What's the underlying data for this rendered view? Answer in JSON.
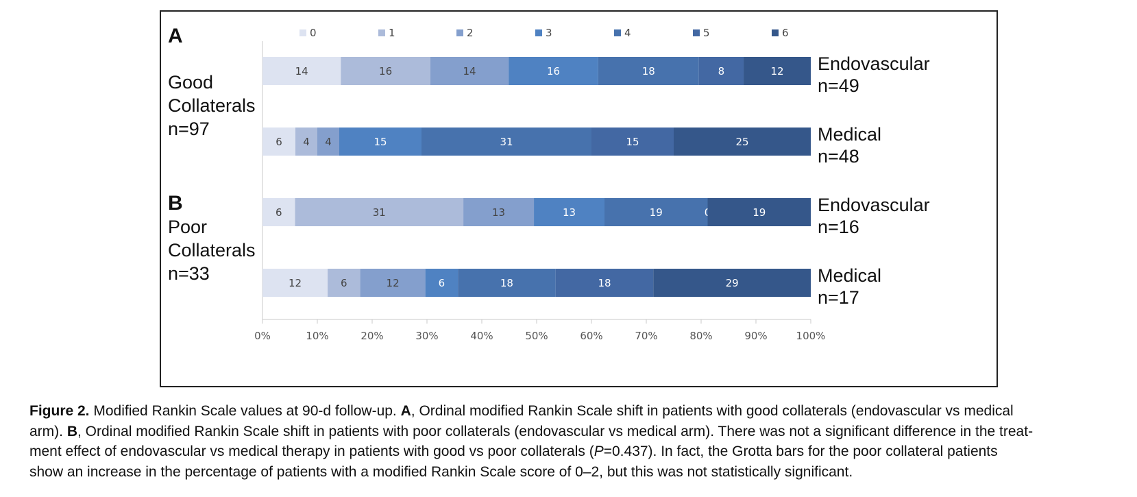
{
  "chart_data": {
    "type": "bar",
    "stacked": true,
    "orientation": "horizontal",
    "xlim": [
      0,
      100
    ],
    "x_ticks": [
      "0%",
      "10%",
      "20%",
      "30%",
      "40%",
      "50%",
      "60%",
      "70%",
      "80%",
      "90%",
      "100%"
    ],
    "legend": {
      "placement": "top",
      "entries": [
        "0",
        "1",
        "2",
        "3",
        "4",
        "5",
        "6"
      ],
      "colors": [
        "#dde3f1",
        "#acbbda",
        "#849fcd",
        "#4f82c2",
        "#4772ad",
        "#4368a3",
        "#35578a"
      ]
    },
    "panels": [
      {
        "letter": "A",
        "label_lines": [
          "Good",
          "Collaterals",
          "n=97"
        ],
        "rows": [
          {
            "label_lines": [
              "Endovascular",
              "n=49"
            ],
            "values": [
              14,
              16,
              14,
              16,
              18,
              8,
              12
            ]
          },
          {
            "label_lines": [
              "Medical",
              "n=48"
            ],
            "values": [
              6,
              4,
              4,
              15,
              31,
              15,
              25
            ]
          }
        ]
      },
      {
        "letter": "B",
        "label_lines": [
          "Poor",
          "Collaterals",
          "n=33"
        ],
        "rows": [
          {
            "label_lines": [
              "Endovascular",
              "n=16"
            ],
            "values": [
              6,
              31,
              13,
              13,
              19,
              0,
              19
            ]
          },
          {
            "label_lines": [
              "Medical",
              "n=17"
            ],
            "values": [
              12,
              6,
              12,
              6,
              18,
              18,
              29
            ]
          }
        ]
      }
    ]
  },
  "caption": {
    "lines": [
      [
        {
          "t": "Figure 2.",
          "b": true
        },
        {
          "t": " Modified Rankin Scale values at 90-d follow-up. "
        },
        {
          "t": "A",
          "b": true
        },
        {
          "t": ", Ordinal modified Rankin Scale shift in patients with good collaterals (endovascular vs medical"
        }
      ],
      [
        {
          "t": "arm). "
        },
        {
          "t": "B",
          "b": true
        },
        {
          "t": ", Ordinal modified Rankin Scale shift in patients with poor collaterals (endovascular vs medical arm). There was not a significant difference in the treat-"
        }
      ],
      [
        {
          "t": "ment effect of endovascular vs medical therapy in patients with good vs poor collaterals ("
        },
        {
          "t": "P",
          "i": true
        },
        {
          "t": "=0.437). In fact, the Grotta bars for the poor collateral patients"
        }
      ],
      [
        {
          "t": "show an increase in the percentage of patients with a modified Rankin Scale score of 0–2, but this was not statistically significant."
        }
      ]
    ]
  }
}
